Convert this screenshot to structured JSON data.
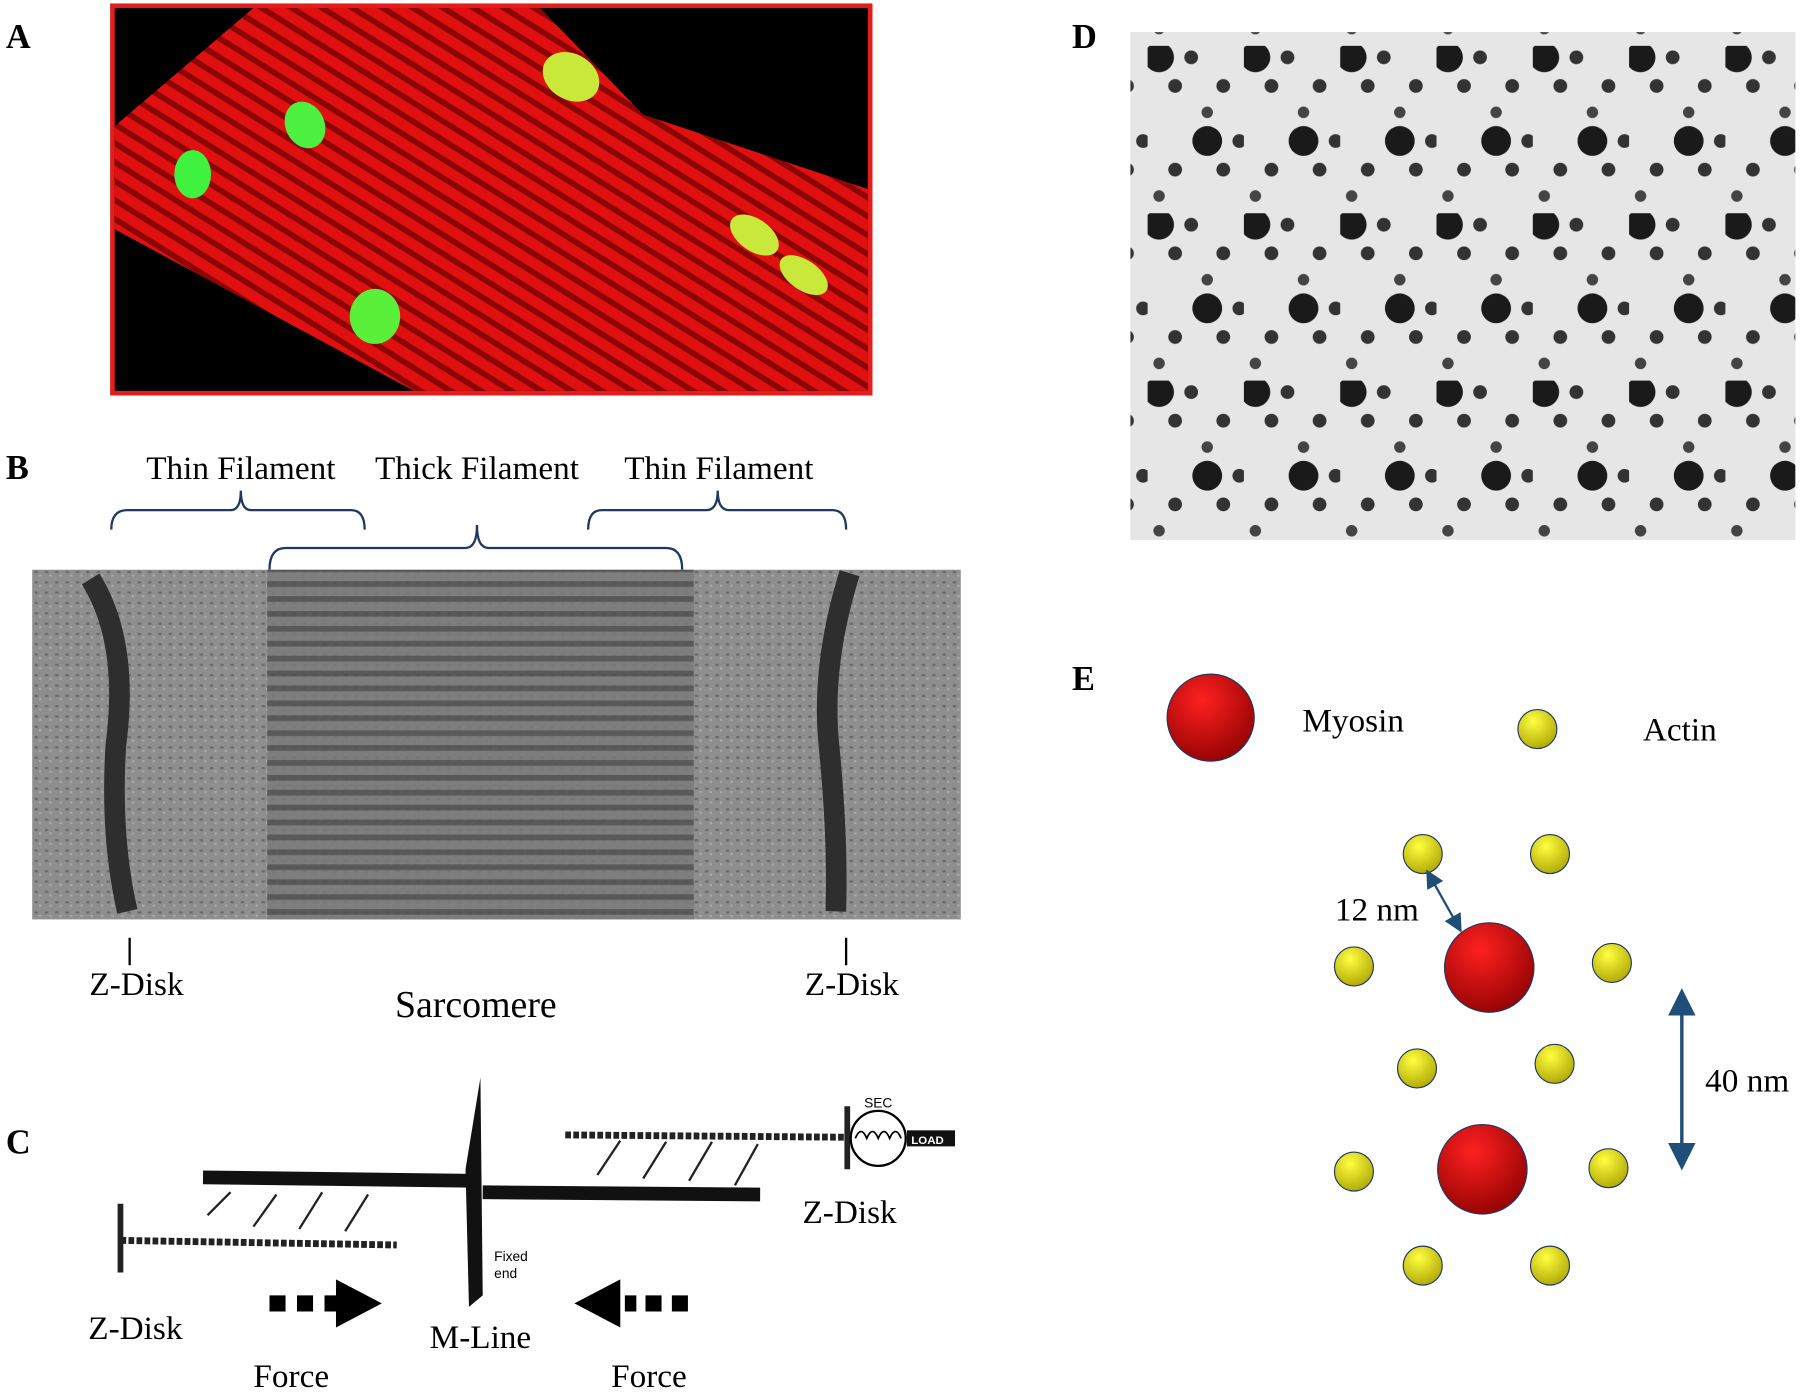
{
  "panel_a": {
    "label": "A"
  },
  "panel_b": {
    "label": "B",
    "top_labels": [
      "Thin Filament",
      "Thick Filament",
      "Thin Filament"
    ],
    "left_z": "Z-Disk",
    "center": "Sarcomere",
    "right_z": "Z-Disk"
  },
  "panel_c": {
    "label": "C",
    "sec": "SEC",
    "load": "LOAD",
    "fixed": "Fixed",
    "end": "end",
    "right_z": "Z-Disk",
    "left_z": "Z-Disk",
    "m_line": "M-Line",
    "force_left": "Force",
    "force_right": "Force"
  },
  "panel_d": {
    "label": "D"
  },
  "panel_e": {
    "label": "E",
    "myosin": "Myosin",
    "actin": "Actin",
    "d12": "12 nm",
    "d40": "40 nm"
  }
}
